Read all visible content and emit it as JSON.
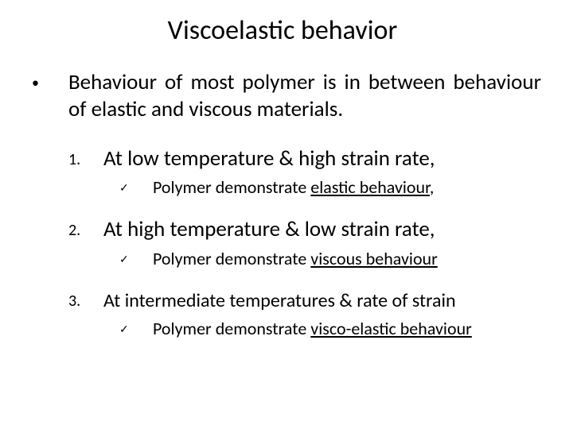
{
  "title": "Viscoelastic behavior",
  "mainBullet": "Behaviour of most polymer is in between behaviour of elastic and viscous materials.",
  "items": [
    {
      "num": "1.",
      "heading": "At low temperature & high strain rate,",
      "subPrefix": "Polymer demonstrate ",
      "subUnderline": "elastic behaviour",
      "subSuffix": ","
    },
    {
      "num": "2.",
      "heading": "At high temperature & low strain rate,",
      "subPrefix": "Polymer demonstrate ",
      "subUnderline": "viscous behaviour",
      "subSuffix": ""
    },
    {
      "num": "3.",
      "heading": "At intermediate temperatures & rate of strain",
      "subPrefix": "Polymer demonstrate ",
      "subUnderline": "visco-elastic behaviour",
      "subSuffix": ""
    }
  ],
  "markers": {
    "bullet": "•",
    "check": "✓"
  },
  "style": {
    "background": "#ffffff",
    "text_color": "#000000",
    "title_fontsize": 34,
    "body_fontsize": 27,
    "sub_fontsize": 22,
    "num_fontsize": 20
  }
}
